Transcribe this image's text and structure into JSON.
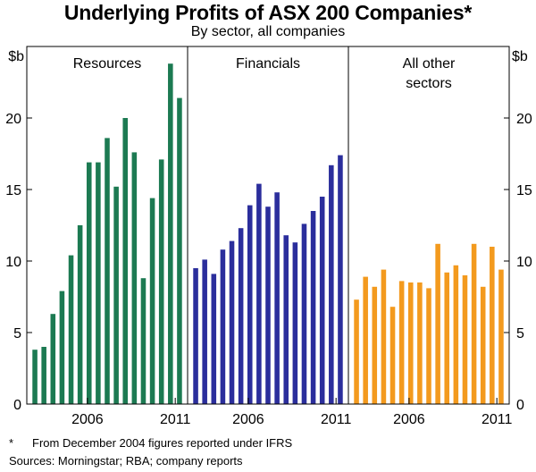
{
  "chart_data": {
    "type": "bar",
    "title": "Underlying Profits of ASX 200 Companies*",
    "subtitle": "By sector, all companies",
    "ylabel": "$b",
    "ylim": [
      0,
      25
    ],
    "yticks": [
      0,
      5,
      10,
      15,
      20
    ],
    "ytick_labels": [
      "0",
      "5",
      "10",
      "15",
      "20"
    ],
    "grid": false,
    "legend": "none",
    "period_start": 2002.75,
    "period_end": 2011.5,
    "xticks": [
      2006,
      2011
    ],
    "xtick_labels": [
      "2006",
      "2011"
    ],
    "panels": [
      {
        "name": "Resources",
        "label": "Resources",
        "color": "#1c7a52",
        "values": [
          3.8,
          4.0,
          6.3,
          7.9,
          10.4,
          12.5,
          16.9,
          16.9,
          18.6,
          15.2,
          20.0,
          17.6,
          8.8,
          14.4,
          17.1,
          23.8,
          21.4
        ]
      },
      {
        "name": "Financials",
        "label": "Financials",
        "color": "#2b2e9c",
        "values": [
          9.5,
          10.1,
          9.1,
          10.8,
          11.4,
          12.3,
          13.9,
          15.4,
          13.8,
          14.8,
          11.8,
          11.3,
          12.6,
          13.5,
          14.5,
          16.7,
          17.4
        ]
      },
      {
        "name": "All other sectors",
        "label": "All other\nsectors",
        "color": "#f39a1e",
        "values": [
          7.3,
          8.9,
          8.2,
          9.4,
          6.8,
          8.6,
          8.5,
          8.5,
          8.1,
          11.2,
          9.2,
          9.7,
          9.0,
          11.2,
          8.2,
          11.0,
          9.4
        ]
      }
    ]
  },
  "footnote": {
    "marker": "*",
    "text": "From December 2004 figures reported under IFRS"
  },
  "sources": "Sources: Morningstar; RBA; company reports"
}
